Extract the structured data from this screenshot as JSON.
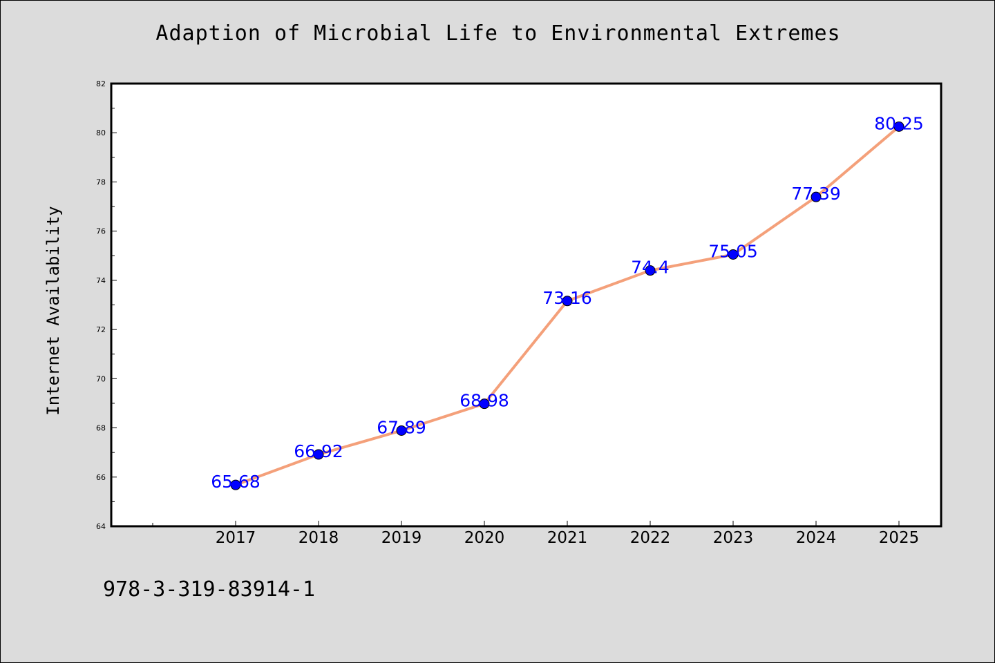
{
  "chart_data": {
    "type": "line",
    "title": "Adaption of Microbial Life to Environmental Extremes",
    "xlabel": "",
    "ylabel": "Internet Availability",
    "categories": [
      "2017",
      "2018",
      "2019",
      "2020",
      "2021",
      "2022",
      "2023",
      "2024",
      "2025"
    ],
    "series": [
      {
        "values": [
          65.68,
          66.92,
          67.89,
          68.98,
          73.16,
          74.4,
          75.05,
          77.39,
          80.25
        ],
        "labels": [
          "65.68",
          "66.92",
          "67.89",
          "68.98",
          "73.16",
          "74.4",
          "75.05",
          "77.39",
          "80.25"
        ],
        "line_color": "#f4a07a",
        "marker_color": "#0000ff"
      }
    ],
    "ylim": [
      64,
      82
    ],
    "yticks": [
      "64",
      "66",
      "68",
      "70",
      "72",
      "74",
      "76",
      "78",
      "80",
      "82"
    ],
    "grid": false,
    "legend": "none"
  },
  "footer_text": "978-3-319-83914-1"
}
